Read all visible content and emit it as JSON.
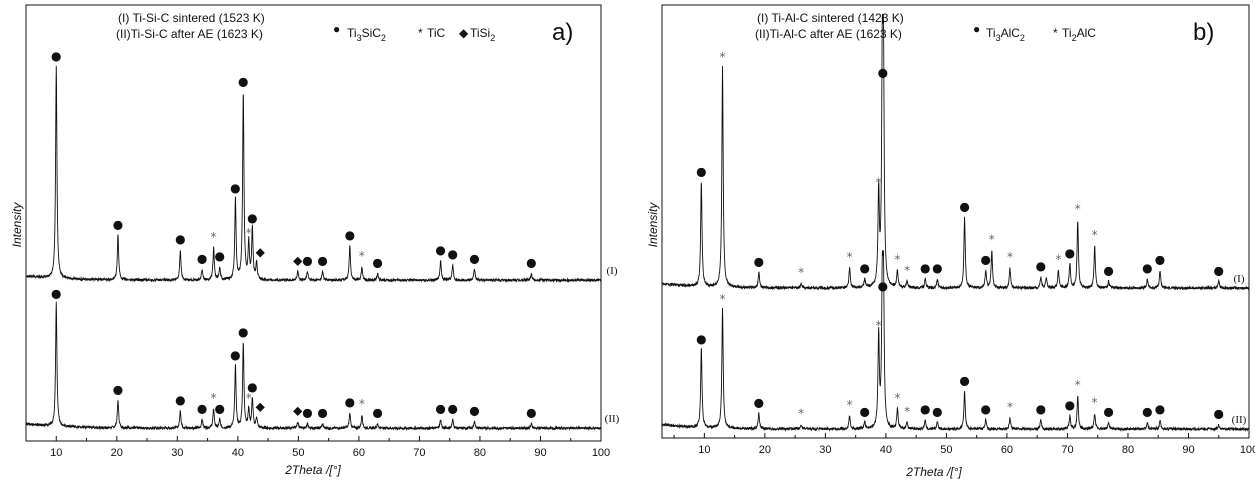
{
  "chart_data": [
    {
      "type": "line",
      "panel_label": "a)",
      "xlabel": "2Theta /[°]",
      "ylabel": "Intensity",
      "xlim": [
        5,
        100
      ],
      "xticks": [
        10,
        20,
        30,
        40,
        50,
        60,
        70,
        80,
        90,
        100
      ],
      "grid": false,
      "legend_lines": [
        "(I) Ti-Si-C sintered (1523 K)",
        "(II)Ti-Si-C after AE (1623 K)"
      ],
      "phase_legend": [
        {
          "symbol": "●",
          "label": "Ti3SiC2"
        },
        {
          "symbol": "*",
          "label": "TiC"
        },
        {
          "symbol": "◆",
          "label": "TiSi2"
        }
      ],
      "series": [
        {
          "name": "(I)",
          "peaks": [
            [
              10.0,
              1.0
            ],
            [
              20.2,
              0.21
            ],
            [
              30.5,
              0.14
            ],
            [
              34.1,
              0.05
            ],
            [
              36.0,
              0.15
            ],
            [
              37.0,
              0.06
            ],
            [
              39.6,
              0.38
            ],
            [
              40.9,
              0.88
            ],
            [
              41.8,
              0.17
            ],
            [
              42.4,
              0.24
            ],
            [
              43.1,
              0.08
            ],
            [
              49.9,
              0.04
            ],
            [
              51.5,
              0.04
            ],
            [
              54.0,
              0.04
            ],
            [
              58.5,
              0.16
            ],
            [
              60.5,
              0.06
            ],
            [
              63.1,
              0.03
            ],
            [
              73.5,
              0.09
            ],
            [
              75.5,
              0.07
            ],
            [
              79.1,
              0.05
            ],
            [
              88.5,
              0.03
            ]
          ],
          "markers": [
            [
              10.0,
              "●"
            ],
            [
              20.2,
              "●"
            ],
            [
              30.5,
              "●"
            ],
            [
              34.1,
              "●"
            ],
            [
              36.0,
              "*"
            ],
            [
              37.0,
              "●"
            ],
            [
              39.6,
              "●"
            ],
            [
              40.9,
              "●"
            ],
            [
              41.8,
              "*"
            ],
            [
              42.4,
              "●"
            ],
            [
              43.7,
              "◆"
            ],
            [
              49.9,
              "◆"
            ],
            [
              51.5,
              "●"
            ],
            [
              54.0,
              "●"
            ],
            [
              58.5,
              "●"
            ],
            [
              60.5,
              "*"
            ],
            [
              63.1,
              "●"
            ],
            [
              73.5,
              "●"
            ],
            [
              75.5,
              "●"
            ],
            [
              79.1,
              "●"
            ],
            [
              88.5,
              "●"
            ]
          ],
          "curve_label": "(I)"
        },
        {
          "name": "(II)",
          "peaks": [
            [
              10.0,
              0.58
            ],
            [
              20.2,
              0.13
            ],
            [
              30.5,
              0.08
            ],
            [
              34.1,
              0.04
            ],
            [
              36.0,
              0.09
            ],
            [
              37.0,
              0.04
            ],
            [
              39.6,
              0.29
            ],
            [
              40.9,
              0.4
            ],
            [
              41.8,
              0.09
            ],
            [
              42.4,
              0.14
            ],
            [
              43.1,
              0.05
            ],
            [
              49.9,
              0.03
            ],
            [
              51.5,
              0.02
            ],
            [
              54.0,
              0.02
            ],
            [
              58.5,
              0.07
            ],
            [
              60.5,
              0.06
            ],
            [
              63.1,
              0.02
            ],
            [
              73.5,
              0.04
            ],
            [
              75.5,
              0.04
            ],
            [
              79.1,
              0.03
            ],
            [
              88.5,
              0.02
            ]
          ],
          "markers": [
            [
              10.0,
              "●"
            ],
            [
              20.2,
              "●"
            ],
            [
              30.5,
              "●"
            ],
            [
              34.1,
              "●"
            ],
            [
              36.0,
              "*"
            ],
            [
              37.0,
              "●"
            ],
            [
              39.6,
              "●"
            ],
            [
              40.9,
              "●"
            ],
            [
              41.8,
              "*"
            ],
            [
              42.4,
              "●"
            ],
            [
              43.7,
              "◆"
            ],
            [
              49.9,
              "◆"
            ],
            [
              51.5,
              "●"
            ],
            [
              54.0,
              "●"
            ],
            [
              58.5,
              "●"
            ],
            [
              60.5,
              "*"
            ],
            [
              63.1,
              "●"
            ],
            [
              73.5,
              "●"
            ],
            [
              75.5,
              "●"
            ],
            [
              79.1,
              "●"
            ],
            [
              88.5,
              "●"
            ]
          ],
          "curve_label": "(II)"
        }
      ]
    },
    {
      "type": "line",
      "panel_label": "b)",
      "xlabel": "2Theta /[°]",
      "ylabel": "Intensity",
      "xlim": [
        3,
        100
      ],
      "xticks": [
        10,
        20,
        30,
        40,
        50,
        60,
        70,
        80,
        90,
        100
      ],
      "grid": false,
      "legend_lines": [
        "(I) Ti-Al-C sintered (1423 K)",
        "(II)Ti-Al-C after AE (1623 K)"
      ],
      "phase_legend": [
        {
          "symbol": "●",
          "label": "Ti3AlC2"
        },
        {
          "symbol": "*",
          "label": "Ti2AlC"
        }
      ],
      "series": [
        {
          "name": "(I)",
          "peaks": [
            [
              9.5,
              0.48
            ],
            [
              13.0,
              1.0
            ],
            [
              19.0,
              0.07
            ],
            [
              26.0,
              0.02
            ],
            [
              34.0,
              0.09
            ],
            [
              36.5,
              0.04
            ],
            [
              38.8,
              0.43
            ],
            [
              39.4,
              0.93
            ],
            [
              39.6,
              0.95
            ],
            [
              41.9,
              0.08
            ],
            [
              43.5,
              0.03
            ],
            [
              46.5,
              0.04
            ],
            [
              48.5,
              0.04
            ],
            [
              53.0,
              0.32
            ],
            [
              56.5,
              0.08
            ],
            [
              57.5,
              0.17
            ],
            [
              60.5,
              0.09
            ],
            [
              65.6,
              0.05
            ],
            [
              66.5,
              0.05
            ],
            [
              68.5,
              0.08
            ],
            [
              70.4,
              0.11
            ],
            [
              71.7,
              0.31
            ],
            [
              74.5,
              0.19
            ],
            [
              76.8,
              0.03
            ],
            [
              83.2,
              0.04
            ],
            [
              85.3,
              0.08
            ],
            [
              95.0,
              0.03
            ]
          ],
          "markers": [
            [
              9.5,
              "●"
            ],
            [
              13.0,
              "*"
            ],
            [
              19.0,
              "●"
            ],
            [
              26.0,
              "*"
            ],
            [
              34.0,
              "*"
            ],
            [
              36.5,
              "●"
            ],
            [
              38.8,
              "*"
            ],
            [
              39.5,
              "●"
            ],
            [
              41.9,
              "*"
            ],
            [
              43.5,
              "*"
            ],
            [
              46.5,
              "●"
            ],
            [
              48.5,
              "●"
            ],
            [
              53.0,
              "●"
            ],
            [
              56.5,
              "●"
            ],
            [
              57.5,
              "*"
            ],
            [
              60.5,
              "*"
            ],
            [
              65.6,
              "●"
            ],
            [
              68.5,
              "*"
            ],
            [
              70.4,
              "●"
            ],
            [
              71.7,
              "*"
            ],
            [
              74.5,
              "*"
            ],
            [
              76.8,
              "●"
            ],
            [
              83.2,
              "●"
            ],
            [
              85.3,
              "●"
            ],
            [
              95.0,
              "●"
            ]
          ],
          "curve_label": "(I)"
        },
        {
          "name": "(II)",
          "peaks": [
            [
              9.5,
              0.36
            ],
            [
              13.0,
              0.54
            ],
            [
              19.0,
              0.07
            ],
            [
              26.0,
              0.02
            ],
            [
              34.0,
              0.06
            ],
            [
              36.5,
              0.03
            ],
            [
              38.8,
              0.42
            ],
            [
              39.4,
              0.6
            ],
            [
              39.6,
              0.62
            ],
            [
              41.9,
              0.09
            ],
            [
              43.5,
              0.03
            ],
            [
              46.5,
              0.04
            ],
            [
              48.5,
              0.03
            ],
            [
              53.0,
              0.17
            ],
            [
              56.5,
              0.04
            ],
            [
              60.5,
              0.05
            ],
            [
              65.6,
              0.04
            ],
            [
              70.4,
              0.06
            ],
            [
              71.7,
              0.15
            ],
            [
              74.5,
              0.07
            ],
            [
              76.8,
              0.03
            ],
            [
              83.2,
              0.03
            ],
            [
              85.3,
              0.04
            ],
            [
              95.0,
              0.02
            ]
          ],
          "markers": [
            [
              9.5,
              "●"
            ],
            [
              13.0,
              "*"
            ],
            [
              19.0,
              "●"
            ],
            [
              26.0,
              "*"
            ],
            [
              34.0,
              "*"
            ],
            [
              36.5,
              "●"
            ],
            [
              38.8,
              "*"
            ],
            [
              39.5,
              "●"
            ],
            [
              41.9,
              "*"
            ],
            [
              43.5,
              "*"
            ],
            [
              46.5,
              "●"
            ],
            [
              48.5,
              "●"
            ],
            [
              53.0,
              "●"
            ],
            [
              56.5,
              "●"
            ],
            [
              60.5,
              "*"
            ],
            [
              65.6,
              "●"
            ],
            [
              70.4,
              "●"
            ],
            [
              71.7,
              "*"
            ],
            [
              74.5,
              "*"
            ],
            [
              76.8,
              "●"
            ],
            [
              83.2,
              "●"
            ],
            [
              85.3,
              "●"
            ],
            [
              95.0,
              "●"
            ]
          ],
          "curve_label": "(II)"
        }
      ]
    }
  ]
}
